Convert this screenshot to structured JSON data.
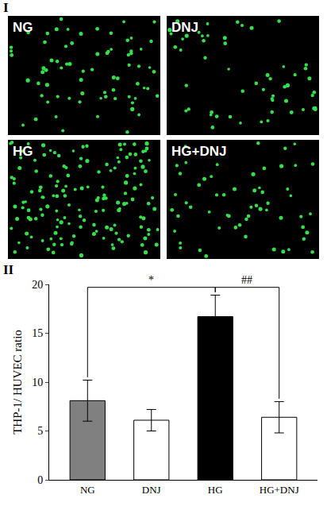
{
  "panel_labels": [
    "I",
    "II"
  ],
  "images": [
    "NG",
    "DNJ",
    "HG",
    "HG+DNJ"
  ],
  "chart_data": {
    "type": "bar",
    "y_label": "THP-1/ HUVEC ratio",
    "categories": [
      "NG",
      "DNJ",
      "HG",
      "HG+DNJ"
    ],
    "values": [
      8.1,
      6.1,
      16.7,
      6.4
    ],
    "errors": [
      2.1,
      1.1,
      2.2,
      1.6
    ],
    "colors": [
      "#808080",
      "#ffffff",
      "#000000",
      "#ffffff"
    ],
    "ylim": [
      0,
      20
    ],
    "yticks": [
      0,
      5,
      10,
      15,
      20
    ],
    "grid": false,
    "annotations": [
      {
        "text": "*",
        "between": [
          "NG",
          "HG"
        ]
      },
      {
        "text": "##",
        "between": [
          "HG",
          "HG+DNJ"
        ]
      }
    ]
  }
}
